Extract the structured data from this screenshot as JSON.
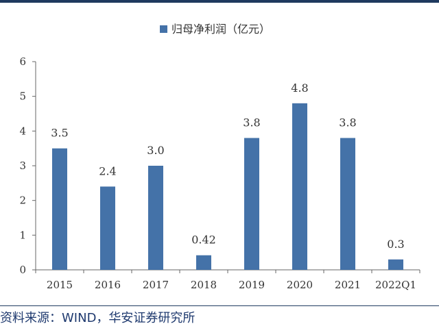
{
  "chart_data": {
    "type": "bar",
    "categories": [
      "2015",
      "2016",
      "2017",
      "2018",
      "2019",
      "2020",
      "2021",
      "2022Q1"
    ],
    "series": [
      {
        "name": "归母净利润（亿元）",
        "values": [
          3.5,
          2.4,
          3.0,
          0.42,
          3.8,
          4.8,
          3.8,
          0.3
        ]
      }
    ],
    "data_labels": [
      "3.5",
      "2.4",
      "3.0",
      "0.42",
      "3.8",
      "4.8",
      "3.8",
      "0.3"
    ],
    "yticks": [
      "0",
      "1",
      "2",
      "3",
      "4",
      "5",
      "6"
    ],
    "ylim": [
      0,
      6
    ],
    "grid": false,
    "legend_position": "top-center",
    "bar_color": "#4472a8"
  },
  "source_note": "资料来源：WIND，华安证券研究所"
}
